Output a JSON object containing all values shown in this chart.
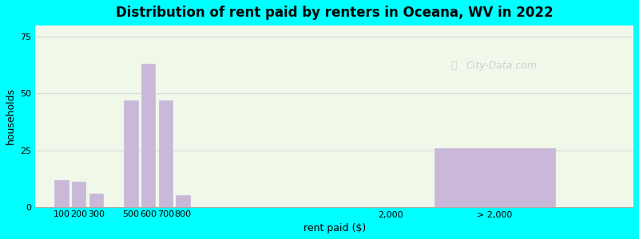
{
  "title": "Distribution of rent paid by renters in Oceana, WV in 2022",
  "xlabel": "rent paid ($)",
  "ylabel": "households",
  "background_color": "#00FFFF",
  "plot_bg_color_left": "#e8f5e2",
  "bar_color": "#c9b8d8",
  "bar_edgecolor": "#b0a0c0",
  "yticks": [
    0,
    25,
    50,
    75
  ],
  "ylim": [
    0,
    80
  ],
  "categories": [
    "100",
    "200",
    "300",
    "500",
    "600",
    "700",
    "800",
    "2,000",
    "> 2,000"
  ],
  "values": [
    12,
    11,
    6,
    47,
    63,
    47,
    5,
    0,
    26
  ],
  "watermark": "City-Data.com"
}
